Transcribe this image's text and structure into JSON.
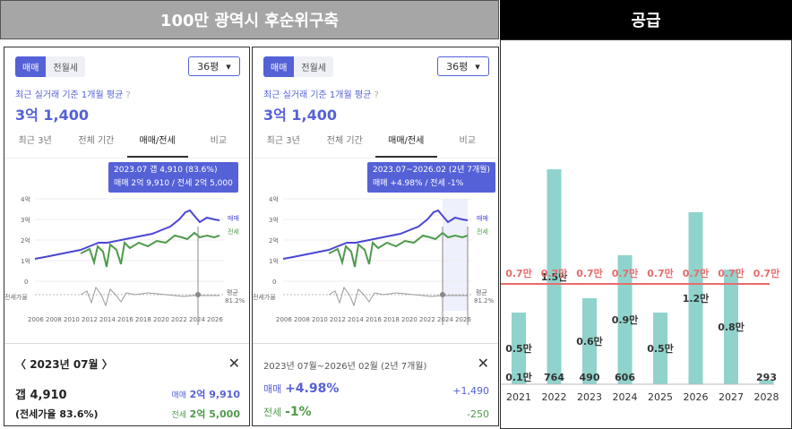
{
  "headers": {
    "left": "100만 광역시 후순위구축",
    "right": "공급"
  },
  "panel1": {
    "seg_on": "매매",
    "seg_off": "전월세",
    "dropdown": "36평",
    "subtitle": "최근 실거래 기준 1개월 평균",
    "price": "3억 1,400",
    "tabs": [
      "최근 3년",
      "전체 기간",
      "매매/전세",
      "비교"
    ],
    "tip_line1": "2023.07  갭 4,910 (83.6%)",
    "tip_line2": "매매 2억 9,910 / 전세 2억 5,000",
    "date_nav": "2023년 07월",
    "gap": "갭 4,910",
    "ratio": "(전세가율 83.6%)",
    "sale_label": "매매",
    "sale_val": "2억 9,910",
    "jeonse_label": "전세",
    "jeonse_val": "2억 5,000"
  },
  "panel2": {
    "seg_on": "매매",
    "seg_off": "전월세",
    "dropdown": "36평",
    "subtitle": "최근 실거래 기준 1개월 평균",
    "price": "3억 1,400",
    "tabs": [
      "최근 3년",
      "전체 기간",
      "매매/전세",
      "비교"
    ],
    "tip_line1": "2023.07~2026.02 (2년 7개월)",
    "tip_line2": "매매 +4.98%  /  전세 -1%",
    "range": "2023년 07월~2026년 02월 (2년 7개월)",
    "sale_label": "매매",
    "sale_pct": "+4.98%",
    "sale_abs": "+1,490",
    "jeonse_label": "전세",
    "jeonse_pct": "-1%",
    "jeonse_abs": "-250"
  },
  "chart_axes": {
    "y_ticks": [
      "4억",
      "3억",
      "2억",
      "1억",
      "0"
    ],
    "x_ticks": [
      "2006",
      "2008",
      "2010",
      "2012",
      "2014",
      "2016",
      "2018",
      "2020",
      "2022",
      "2024",
      "2026"
    ],
    "legend_sale": "매매",
    "legend_jeonse": "전세",
    "ratio_label": "전세가율",
    "avg_label": "평균",
    "avg_val": "81.2%"
  },
  "chart_data": {
    "type": "bar",
    "categories": [
      "2021",
      "2022",
      "2023",
      "2024",
      "2025",
      "2026",
      "2027",
      "2028"
    ],
    "values": [
      0.5,
      1.5,
      0.6,
      0.9,
      0.5,
      1.2,
      0.8,
      0.0293
    ],
    "value_labels": [
      "0.5만",
      "1.5만",
      "0.6만",
      "0.9만",
      "0.5만",
      "1.2만",
      "0.8만",
      ""
    ],
    "bottom_labels": [
      "0.1만",
      "764",
      "490",
      "606",
      "",
      "",
      "",
      "293"
    ],
    "reference_label": "0.7만",
    "reference_value": 0.7,
    "colors": {
      "bar": "#8fd3cc",
      "reference": "#e86b6b"
    }
  },
  "colors": {
    "accent": "#5561d6",
    "sale_line": "#4a46d6",
    "jeonse_line": "#4e9a4b",
    "header_left": "#a6a6a6",
    "header_right": "#000000"
  }
}
